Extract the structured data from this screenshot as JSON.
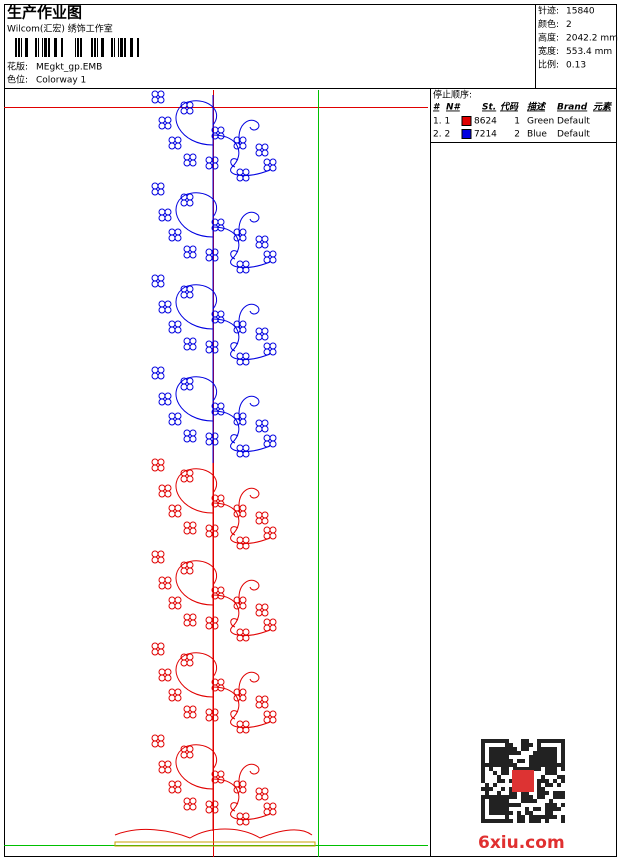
{
  "header": {
    "title": "生产作业图",
    "studio": "Wilcom(汇宏) 绣饰工作室",
    "design_label": "花版:",
    "design": "MEgkt_gp.EMB",
    "colorway_label": "色位:",
    "colorway": "Colorway 1"
  },
  "info": [
    {
      "label": "针迹:",
      "value": "15840"
    },
    {
      "label": "颜色:",
      "value": "2"
    },
    {
      "label": "高度:",
      "value": "2042.2 mm"
    },
    {
      "label": "宽度:",
      "value": "553.4 mm"
    },
    {
      "label": "比例:",
      "value": "0.13"
    }
  ],
  "stop_sequence": {
    "title": "停止顺序:",
    "columns": [
      "#",
      "N#",
      "St.",
      "代码",
      "描述",
      "Brand",
      "元素"
    ],
    "rows": [
      [
        "1. 1",
        "8624",
        "1",
        "Green",
        "Default"
      ],
      [
        "2. 2",
        "7214",
        "2",
        "Blue",
        "Default"
      ]
    ],
    "swatches": [
      "#e00000",
      "#0000e0"
    ]
  },
  "watermark": "6xiu.com"
}
